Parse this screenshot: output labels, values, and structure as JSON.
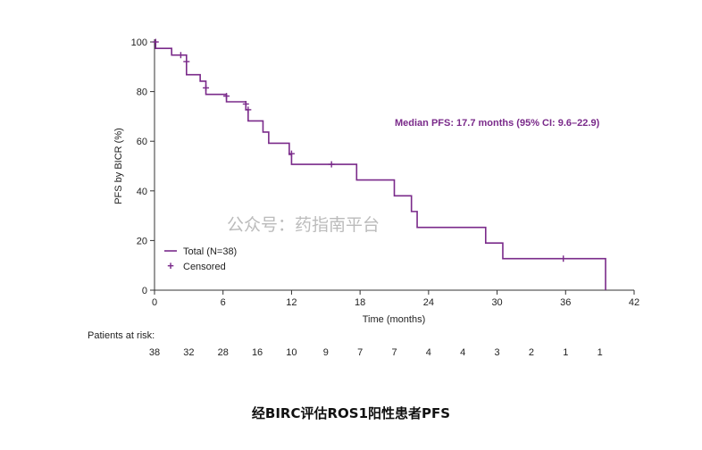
{
  "colors": {
    "curve": "#7a2a8a",
    "axis": "#333333",
    "text": "#222222",
    "watermark": "#b0b0b0"
  },
  "caption": "经BIRC评估ROS1阳性患者PFS",
  "watermark": "公众号：药指南平台",
  "chart_data": {
    "type": "line",
    "title": "",
    "xlabel": "Time (months)",
    "ylabel": "PFS by BICR (%)",
    "xlim": [
      0,
      42
    ],
    "ylim": [
      0,
      100
    ],
    "xticks": [
      "0",
      "6",
      "12",
      "18",
      "24",
      "30",
      "36",
      "42"
    ],
    "yticks": [
      "0",
      "20",
      "40",
      "60",
      "80",
      "100"
    ],
    "grid": false,
    "legend": {
      "placement": "bottom-left",
      "entries": [
        "Total (N=38)",
        "Censored"
      ]
    },
    "annotation": "Median PFS: 17.7 months (95% CI: 9.6–22.9)",
    "series": [
      {
        "name": "Total (N=38)",
        "step_points": [
          [
            0,
            100
          ],
          [
            0.1,
            97.4
          ],
          [
            1.5,
            94.7
          ],
          [
            2.8,
            86.8
          ],
          [
            4.0,
            84.2
          ],
          [
            4.5,
            78.9
          ],
          [
            6.3,
            75.9
          ],
          [
            8.0,
            72.7
          ],
          [
            8.2,
            68.2
          ],
          [
            9.5,
            63.7
          ],
          [
            10.0,
            59.2
          ],
          [
            11.8,
            54.7
          ],
          [
            12.0,
            50.7
          ],
          [
            17.7,
            44.4
          ],
          [
            21.0,
            38.0
          ],
          [
            22.5,
            31.7
          ],
          [
            23.0,
            25.3
          ],
          [
            29.0,
            19.0
          ],
          [
            30.5,
            12.7
          ],
          [
            39.5,
            0
          ]
        ],
        "censored": [
          [
            0.1,
            100
          ],
          [
            2.3,
            94.7
          ],
          [
            2.8,
            92.1
          ],
          [
            4.5,
            81.5
          ],
          [
            6.3,
            78.2
          ],
          [
            8.0,
            75.0
          ],
          [
            8.2,
            72.7
          ],
          [
            12.0,
            55.0
          ],
          [
            15.5,
            50.7
          ],
          [
            35.8,
            12.7
          ]
        ]
      }
    ],
    "risk_table": {
      "label": "Patients at risk:",
      "times": [
        0,
        3,
        6,
        9,
        12,
        15,
        18,
        21,
        24,
        27,
        30,
        33,
        36,
        39
      ],
      "counts": [
        "38",
        "32",
        "28",
        "16",
        "10",
        "9",
        "7",
        "7",
        "4",
        "4",
        "3",
        "2",
        "1",
        "1"
      ]
    }
  }
}
